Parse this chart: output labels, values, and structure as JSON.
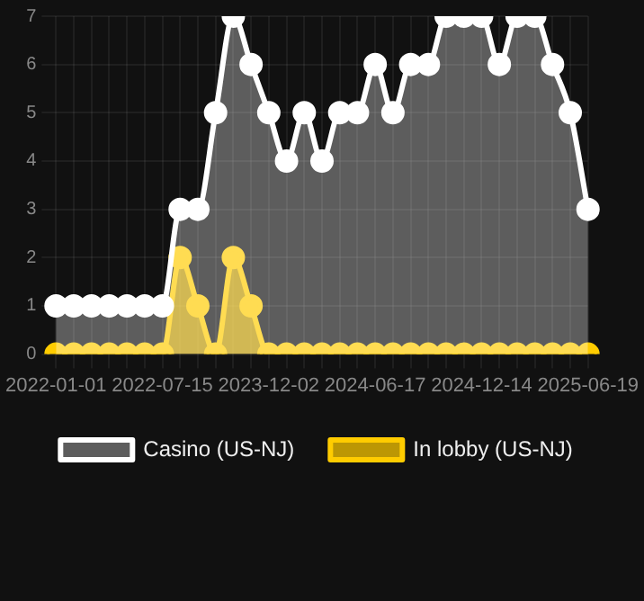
{
  "chart_data": {
    "type": "area",
    "categories": [
      "2022-01-01",
      null,
      null,
      null,
      null,
      null,
      "2022-07-15",
      null,
      null,
      null,
      null,
      null,
      "2023-12-02",
      null,
      null,
      null,
      null,
      null,
      "2024-06-17",
      null,
      null,
      null,
      null,
      null,
      "2024-12-14",
      null,
      null,
      null,
      null,
      null,
      "2025-06-19"
    ],
    "series": [
      {
        "name": "In lobby (US-NJ)",
        "color": "#ffcc00",
        "values": [
          0,
          0,
          0,
          0,
          0,
          0,
          0,
          2,
          1,
          0,
          2,
          1,
          0,
          0,
          0,
          0,
          0,
          0,
          0,
          0,
          0,
          0,
          0,
          0,
          0,
          0,
          0,
          0,
          0,
          0,
          0
        ]
      },
      {
        "name": "Casino (US-NJ)",
        "color": "#ffffff",
        "values": [
          1,
          1,
          1,
          1,
          1,
          1,
          1,
          3,
          3,
          5,
          7,
          6,
          5,
          4,
          5,
          4,
          5,
          5,
          6,
          5,
          6,
          6,
          7,
          7,
          7,
          6,
          7,
          7,
          6,
          5,
          3
        ]
      }
    ],
    "ylim": [
      0,
      7
    ],
    "yticks": [
      0,
      1,
      2,
      3,
      4,
      5,
      6,
      7
    ],
    "grid": true,
    "legend": "bottom",
    "marker": "circle"
  }
}
